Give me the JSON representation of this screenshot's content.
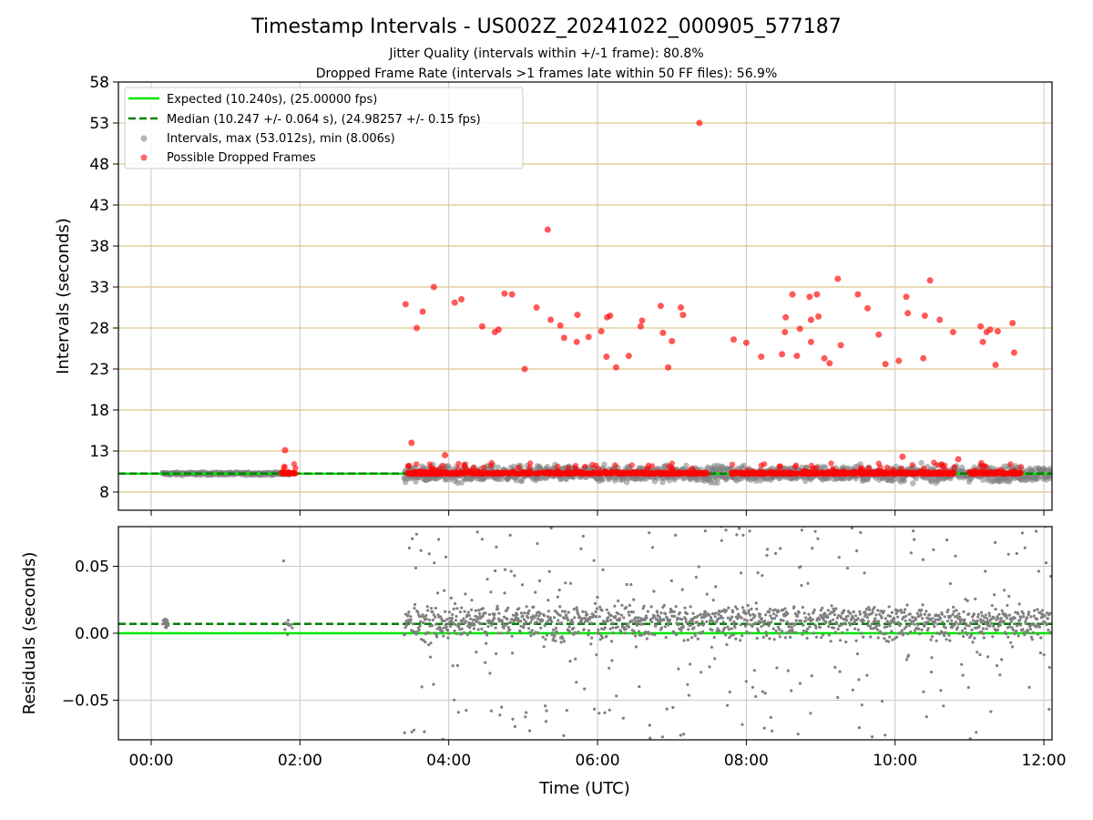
{
  "figure": {
    "title": "Timestamp Intervals - US002Z_20241022_000905_577187",
    "subtitle_1": "Jitter Quality (intervals within +/-1 frame): 80.8%",
    "subtitle_2": "Dropped Frame Rate (intervals >1 frames late within 50 FF files): 56.9%"
  },
  "colors": {
    "expected": "#00e600",
    "median": "#008000",
    "intervals": "#808080",
    "dropped": "#ff0000",
    "hgrid_top": "#d6b86b",
    "grid": "#c8c8c8"
  },
  "chart_data": [
    {
      "type": "scatter",
      "panel": "intervals",
      "ylabel": "Intervals (seconds)",
      "yticks": [
        "8",
        "13",
        "18",
        "23",
        "28",
        "33",
        "38",
        "43",
        "48",
        "53",
        "58"
      ],
      "ylim": [
        5.6,
        58
      ],
      "xlim_hours": [
        -0.45,
        12.1
      ],
      "grid": true,
      "legend_position": "top-left",
      "legend": [
        {
          "label": "Expected (10.240s), (25.00000 fps)",
          "style": "solid-line"
        },
        {
          "label": "Median (10.247 +/- 0.064 s), (24.98257 +/- 0.15 fps)",
          "style": "dashed-line"
        },
        {
          "label": "Intervals, max (53.012s), min (8.006s)",
          "style": "gray-dot"
        },
        {
          "label": "Possible Dropped Frames",
          "style": "red-dot"
        }
      ],
      "expected_interval": 10.24,
      "median_interval": 10.247,
      "interval_range": [
        8.006,
        53.012
      ],
      "observation_segments_hours": [
        [
          0.15,
          1.9
        ],
        [
          3.4,
          12.1
        ]
      ],
      "dropped_frames": [
        {
          "t": 1.8,
          "y": 13.1
        },
        {
          "t": 3.42,
          "y": 30.9
        },
        {
          "t": 3.57,
          "y": 28.0
        },
        {
          "t": 3.65,
          "y": 30.0
        },
        {
          "t": 3.8,
          "y": 33.0
        },
        {
          "t": 4.08,
          "y": 31.1
        },
        {
          "t": 4.17,
          "y": 31.5
        },
        {
          "t": 4.45,
          "y": 28.2
        },
        {
          "t": 4.62,
          "y": 27.5
        },
        {
          "t": 4.67,
          "y": 27.8
        },
        {
          "t": 4.75,
          "y": 32.2
        },
        {
          "t": 4.85,
          "y": 32.1
        },
        {
          "t": 5.02,
          "y": 23.0
        },
        {
          "t": 5.18,
          "y": 30.5
        },
        {
          "t": 5.33,
          "y": 40.0
        },
        {
          "t": 5.37,
          "y": 29.0
        },
        {
          "t": 5.5,
          "y": 28.3
        },
        {
          "t": 5.55,
          "y": 26.8
        },
        {
          "t": 5.72,
          "y": 26.3
        },
        {
          "t": 5.73,
          "y": 29.6
        },
        {
          "t": 5.88,
          "y": 26.9
        },
        {
          "t": 6.05,
          "y": 27.6
        },
        {
          "t": 6.13,
          "y": 29.3
        },
        {
          "t": 6.17,
          "y": 29.5
        },
        {
          "t": 6.12,
          "y": 24.5
        },
        {
          "t": 6.25,
          "y": 23.2
        },
        {
          "t": 6.42,
          "y": 24.6
        },
        {
          "t": 6.58,
          "y": 28.2
        },
        {
          "t": 6.6,
          "y": 28.9
        },
        {
          "t": 6.85,
          "y": 30.7
        },
        {
          "t": 6.88,
          "y": 27.4
        },
        {
          "t": 6.95,
          "y": 23.2
        },
        {
          "t": 7.0,
          "y": 26.4
        },
        {
          "t": 7.12,
          "y": 30.5
        },
        {
          "t": 7.15,
          "y": 29.6
        },
        {
          "t": 7.37,
          "y": 53.0
        },
        {
          "t": 7.83,
          "y": 26.6
        },
        {
          "t": 8.0,
          "y": 26.2
        },
        {
          "t": 8.2,
          "y": 24.5
        },
        {
          "t": 8.48,
          "y": 24.8
        },
        {
          "t": 8.52,
          "y": 27.5
        },
        {
          "t": 8.53,
          "y": 29.3
        },
        {
          "t": 8.62,
          "y": 32.1
        },
        {
          "t": 8.68,
          "y": 24.6
        },
        {
          "t": 8.72,
          "y": 27.9
        },
        {
          "t": 8.85,
          "y": 31.8
        },
        {
          "t": 8.87,
          "y": 29.0
        },
        {
          "t": 8.87,
          "y": 26.3
        },
        {
          "t": 8.95,
          "y": 32.1
        },
        {
          "t": 8.97,
          "y": 29.4
        },
        {
          "t": 9.05,
          "y": 24.3
        },
        {
          "t": 9.12,
          "y": 23.7
        },
        {
          "t": 9.23,
          "y": 34.0
        },
        {
          "t": 9.27,
          "y": 25.9
        },
        {
          "t": 9.5,
          "y": 32.1
        },
        {
          "t": 9.63,
          "y": 30.4
        },
        {
          "t": 9.78,
          "y": 27.2
        },
        {
          "t": 9.87,
          "y": 23.6
        },
        {
          "t": 10.05,
          "y": 24.0
        },
        {
          "t": 10.15,
          "y": 31.8
        },
        {
          "t": 10.17,
          "y": 29.8
        },
        {
          "t": 10.38,
          "y": 24.3
        },
        {
          "t": 10.4,
          "y": 29.5
        },
        {
          "t": 10.47,
          "y": 33.8
        },
        {
          "t": 10.6,
          "y": 29.0
        },
        {
          "t": 10.78,
          "y": 27.5
        },
        {
          "t": 11.15,
          "y": 28.2
        },
        {
          "t": 11.18,
          "y": 26.3
        },
        {
          "t": 11.23,
          "y": 27.5
        },
        {
          "t": 11.28,
          "y": 27.8
        },
        {
          "t": 11.35,
          "y": 23.5
        },
        {
          "t": 11.38,
          "y": 27.6
        },
        {
          "t": 11.58,
          "y": 28.6
        },
        {
          "t": 11.6,
          "y": 25.0
        },
        {
          "t": 3.5,
          "y": 14.0
        },
        {
          "t": 3.95,
          "y": 12.5
        },
        {
          "t": 10.1,
          "y": 12.3
        },
        {
          "t": 10.85,
          "y": 12.0
        }
      ]
    },
    {
      "type": "scatter",
      "panel": "residuals",
      "xlabel": "Time (UTC)",
      "ylabel": "Residuals (seconds)",
      "yticks": [
        "0.05",
        "0.00",
        "−0.05"
      ],
      "ylim": [
        -0.08,
        0.08
      ],
      "xticks": [
        "00:00",
        "02:00",
        "04:00",
        "06:00",
        "08:00",
        "10:00",
        "12:00"
      ],
      "xlim_hours": [
        -0.45,
        12.1
      ],
      "grid": true,
      "expected_residual": 0.0,
      "median_residual": 0.007,
      "residual_spread": 0.08
    }
  ]
}
